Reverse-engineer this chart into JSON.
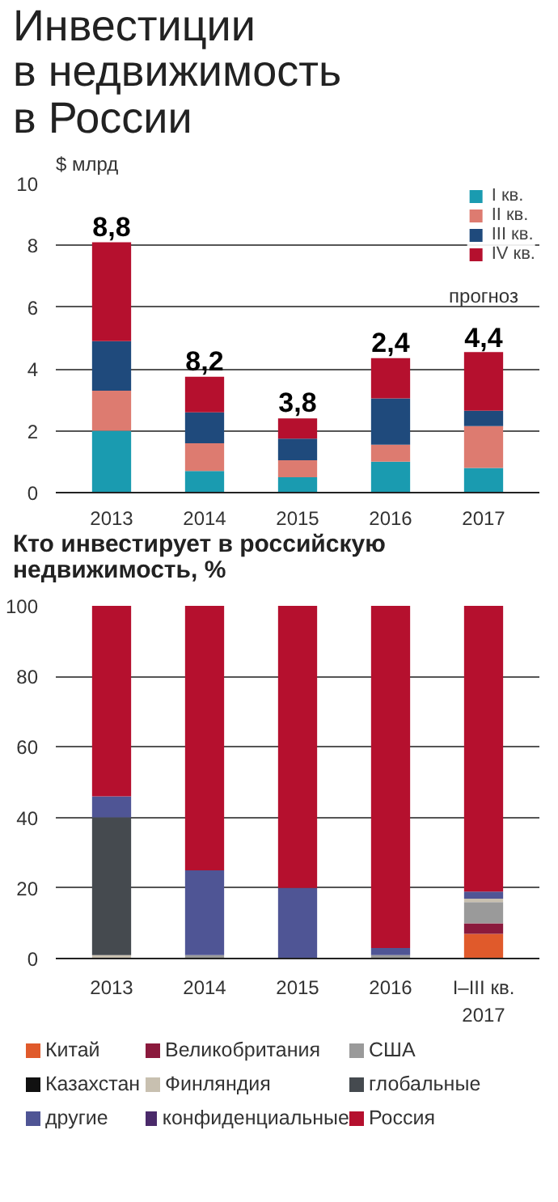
{
  "chart_data": [
    {
      "type": "bar",
      "title": "Инвестиции\nв недвижимость\nв России",
      "ylabel": "$ млрд",
      "stacked": true,
      "categories": [
        "2013",
        "2014",
        "2015",
        "2016",
        "2017"
      ],
      "series": [
        {
          "name": "I кв.",
          "color": "#1a9bb0",
          "values": [
            2.0,
            0.7,
            0.5,
            1.0,
            0.8
          ]
        },
        {
          "name": "II кв.",
          "color": "#dd7b70",
          "values": [
            1.3,
            0.9,
            0.55,
            0.55,
            1.35
          ]
        },
        {
          "name": "III кв.",
          "color": "#1f4a7c",
          "values": [
            1.6,
            1.0,
            0.7,
            1.5,
            0.5
          ]
        },
        {
          "name": "IV кв.",
          "color": "#b5102e",
          "values": [
            3.2,
            1.15,
            0.65,
            1.3,
            1.9
          ]
        }
      ],
      "annotations": [
        {
          "text": "8,8",
          "x": "2013",
          "y": 8.1
        },
        {
          "text": "8,2",
          "x": "2014",
          "y": 3.75
        },
        {
          "text": "3,8",
          "x": "2015",
          "y": 2.4
        },
        {
          "text": "2,4",
          "x": "2016",
          "y": 4.35
        },
        {
          "text": "4,4",
          "x": "2017",
          "y": 4.5
        },
        "прогноз"
      ],
      "ylim": [
        0,
        10
      ],
      "yticks": [
        0,
        2,
        4,
        6,
        8,
        10
      ],
      "grid": "y",
      "legend": "top right"
    },
    {
      "type": "bar",
      "title": "Кто инвестирует в российскую\nнедвижимость, %",
      "stacked": true,
      "categories": [
        "2013",
        "2014",
        "2015",
        "2016",
        "I–III кв.\n2017"
      ],
      "series": [
        {
          "name": "Китай",
          "color": "#e05a2b",
          "values": [
            null,
            null,
            null,
            null,
            7
          ]
        },
        {
          "name": "Великобритания",
          "color": "#8b1a3d",
          "values": [
            null,
            null,
            null,
            null,
            3
          ]
        },
        {
          "name": "США",
          "color": "#9a9a9a",
          "values": [
            null,
            1,
            null,
            1,
            6
          ]
        },
        {
          "name": "Казахстан",
          "color": "#111111",
          "values": [
            null,
            null,
            null,
            null,
            null
          ]
        },
        {
          "name": "Финляндия",
          "color": "#c8c0b0",
          "values": [
            1,
            null,
            null,
            null,
            1
          ]
        },
        {
          "name": "глобальные",
          "color": "#454a4f",
          "values": [
            39,
            null,
            null,
            null,
            null
          ]
        },
        {
          "name": "другие",
          "color": "#4f5595",
          "values": [
            6,
            24,
            20,
            2,
            2
          ]
        },
        {
          "name": "конфиденциальные",
          "color": "#4a2a6a",
          "values": [
            null,
            null,
            null,
            null,
            null
          ]
        },
        {
          "name": "Россия",
          "color": "#b5102e",
          "values": [
            54,
            75,
            80,
            97,
            81
          ]
        }
      ],
      "ylim": [
        0,
        100
      ],
      "yticks": [
        0,
        20,
        40,
        60,
        80,
        100
      ],
      "grid": "y",
      "legend": "bottom"
    }
  ]
}
